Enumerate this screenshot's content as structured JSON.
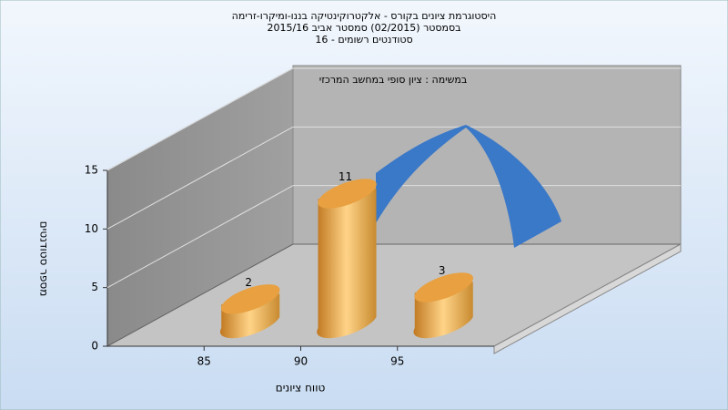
{
  "chart_data": {
    "type": "bar",
    "title": [
      "היסטוגרמת ציונים בקורס - אלקטרוקינטיקה בננו-ומיקרו-זרימה",
      "בסמסטר  (02/2015)  סמסטר אביב 2015/16",
      "סטודנטים רשומים - 16"
    ],
    "annotation": "במשימה : ציון סופי במחשב המרכזי",
    "x_label": "טווח ציונים",
    "y_label": "מספר סטודנטים",
    "x": [
      85,
      90,
      95
    ],
    "values": [
      2,
      11,
      3
    ],
    "color": "#f0a848",
    "xlim": [
      80,
      100
    ],
    "xticks": [
      85,
      90,
      95
    ],
    "ylim": [
      0,
      15
    ],
    "yticks": [
      0,
      5,
      10,
      15
    ],
    "grid": true
  }
}
